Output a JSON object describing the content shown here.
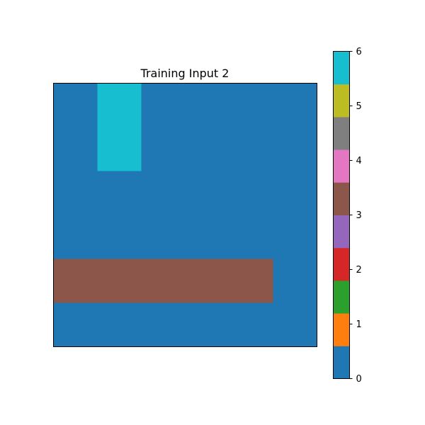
{
  "chart_data": {
    "type": "heatmap",
    "title": "Training Input 2",
    "xlabel": "",
    "ylabel": "",
    "grid": false,
    "show_axes_ticks": false,
    "rows": 6,
    "cols": 6,
    "values": [
      [
        0,
        6,
        0,
        0,
        0,
        0
      ],
      [
        0,
        6,
        0,
        0,
        0,
        0
      ],
      [
        0,
        0,
        0,
        0,
        0,
        0
      ],
      [
        0,
        0,
        0,
        0,
        0,
        0
      ],
      [
        3,
        3,
        3,
        3,
        3,
        0
      ],
      [
        0,
        0,
        0,
        0,
        0,
        0
      ]
    ],
    "colormap": {
      "name": "tab10",
      "colors": [
        "#1f77b4",
        "#ff7f0e",
        "#2ca02c",
        "#d62728",
        "#9467bd",
        "#8c564b",
        "#e377c2",
        "#7f7f7f",
        "#bcbd22",
        "#17becf"
      ],
      "vmin": 0,
      "vmax": 6
    },
    "colorbar": {
      "position": "right",
      "ticks": [
        0,
        1,
        2,
        3,
        4,
        5,
        6
      ],
      "tick_labels": [
        "0",
        "1",
        "2",
        "3",
        "4",
        "5",
        "6"
      ]
    }
  }
}
